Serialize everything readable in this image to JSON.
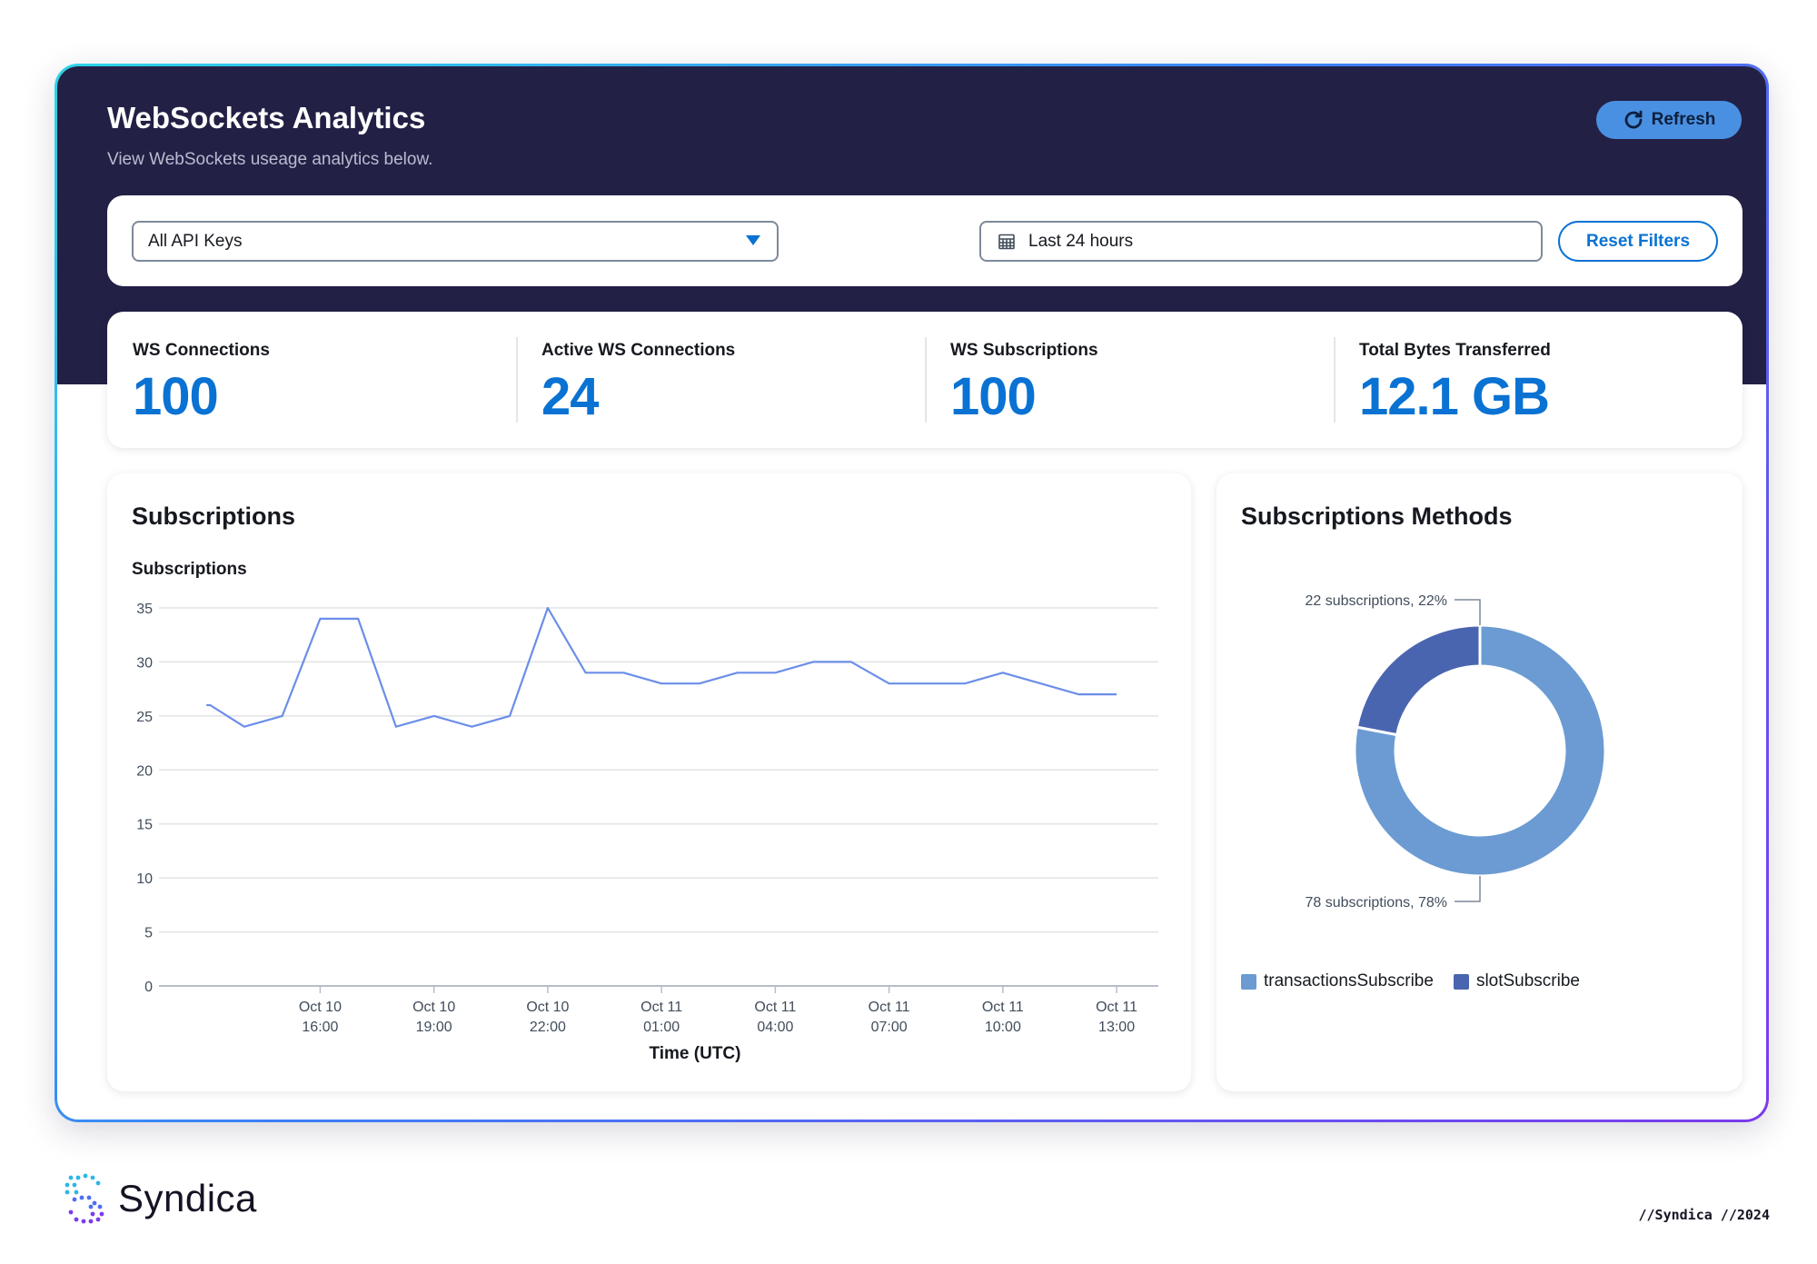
{
  "header": {
    "title": "WebSockets Analytics",
    "subtitle": "View WebSockets useage analytics below.",
    "refresh_label": "Refresh"
  },
  "filters": {
    "api_key_selected": "All API Keys",
    "date_range": "Last 24 hours",
    "reset_label": "Reset Filters"
  },
  "metrics": [
    {
      "label": "WS Connections",
      "value": "100"
    },
    {
      "label": "Active WS Connections",
      "value": "24"
    },
    {
      "label": "WS Subscriptions",
      "value": "100"
    },
    {
      "label": "Total Bytes Transferred",
      "value": "12.1 GB"
    }
  ],
  "line_card": {
    "title": "Subscriptions"
  },
  "pie_card": {
    "title": "Subscriptions Methods"
  },
  "chart_data": [
    {
      "type": "line",
      "ylabel": "Subscriptions",
      "xlabel": "Time (UTC)",
      "ylim": [
        0,
        35
      ],
      "yticks": [
        0,
        5,
        10,
        15,
        20,
        25,
        30,
        35
      ],
      "xticks": [
        {
          "hour": 3,
          "label": [
            "Oct 10",
            "16:00"
          ]
        },
        {
          "hour": 6,
          "label": [
            "Oct 10",
            "19:00"
          ]
        },
        {
          "hour": 9,
          "label": [
            "Oct 10",
            "22:00"
          ]
        },
        {
          "hour": 12,
          "label": [
            "Oct 11",
            "01:00"
          ]
        },
        {
          "hour": 15,
          "label": [
            "Oct 11",
            "04:00"
          ]
        },
        {
          "hour": 18,
          "label": [
            "Oct 11",
            "07:00"
          ]
        },
        {
          "hour": 21,
          "label": [
            "Oct 11",
            "10:00"
          ]
        },
        {
          "hour": 24,
          "label": [
            "Oct 11",
            "13:00"
          ]
        }
      ],
      "x_start": "Oct 10 13:00",
      "x_hours": [
        0,
        0.1,
        1,
        2,
        3,
        4,
        5,
        6,
        7,
        8,
        9,
        10,
        11,
        12,
        13,
        14,
        15,
        16,
        17,
        18,
        19,
        20,
        21,
        22,
        23,
        24
      ],
      "series": [
        {
          "values": [
            26,
            26,
            24,
            25,
            34,
            34,
            24,
            25,
            24,
            25,
            35,
            29,
            29,
            28,
            28,
            29,
            29,
            30,
            30,
            28,
            28,
            28,
            29,
            28,
            27,
            27
          ],
          "color": "#6b8ee8"
        }
      ]
    },
    {
      "type": "pie",
      "style": "donut",
      "slices": [
        {
          "name": "transactionsSubscribe",
          "value": 78,
          "label": "78 subscriptions, 78%",
          "color": "#6b9bd2"
        },
        {
          "name": "slotSubscribe",
          "value": 22,
          "label": "22 subscriptions, 22%",
          "color": "#4a65b0"
        }
      ]
    }
  ],
  "footer": {
    "brand": "Syndica",
    "tag": "//Syndica //2024"
  }
}
